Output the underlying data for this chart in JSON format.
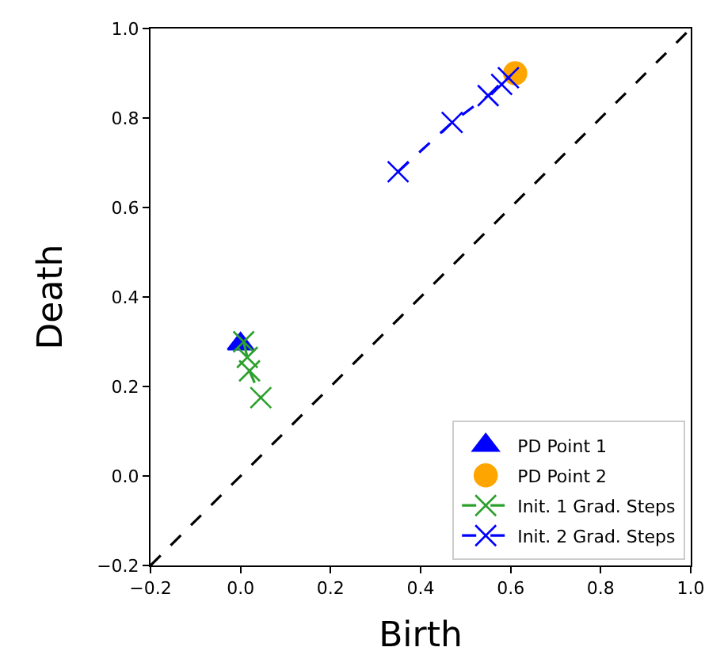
{
  "chart_data": {
    "type": "scatter",
    "xlabel": "Birth",
    "ylabel": "Death",
    "xlim": [
      -0.2,
      1.0
    ],
    "ylim": [
      -0.2,
      1.0
    ],
    "xticks": [
      {
        "value": -0.2,
        "label": "−0.2"
      },
      {
        "value": 0.0,
        "label": "0.0"
      },
      {
        "value": 0.2,
        "label": "0.2"
      },
      {
        "value": 0.4,
        "label": "0.4"
      },
      {
        "value": 0.6,
        "label": "0.6"
      },
      {
        "value": 0.8,
        "label": "0.8"
      },
      {
        "value": 1.0,
        "label": "1.0"
      }
    ],
    "yticks": [
      {
        "value": -0.2,
        "label": "−0.2"
      },
      {
        "value": 0.0,
        "label": "0.0"
      },
      {
        "value": 0.2,
        "label": "0.2"
      },
      {
        "value": 0.4,
        "label": "0.4"
      },
      {
        "value": 0.6,
        "label": "0.6"
      },
      {
        "value": 0.8,
        "label": "0.8"
      },
      {
        "value": 1.0,
        "label": "1.0"
      }
    ],
    "legend": "bottom right",
    "series": [
      {
        "type": "line",
        "color": "#000000",
        "line_style": "dashed",
        "marker": "none",
        "x": [
          -0.2,
          1.0
        ],
        "values": [
          -0.2,
          1.0
        ]
      },
      {
        "name": "PD Point 1",
        "color": "#0000ff",
        "marker": "triangle",
        "x": [
          0.0
        ],
        "values": [
          0.295
        ]
      },
      {
        "name": "PD Point 2",
        "color": "#ffa500",
        "marker": "circle",
        "x": [
          0.61
        ],
        "values": [
          0.9
        ]
      },
      {
        "name": "Init. 1 Grad. Steps",
        "type": "line",
        "color": "#2ca02c",
        "marker": "cross",
        "line_style": "dashed",
        "x": [
          0.007,
          0.015,
          0.02,
          0.045
        ],
        "values": [
          0.3,
          0.265,
          0.235,
          0.175
        ]
      },
      {
        "name": "Init. 2 Grad. Steps",
        "type": "line",
        "color": "#0000ff",
        "marker": "cross",
        "line_style": "dashed",
        "x": [
          0.35,
          0.47,
          0.55,
          0.58,
          0.595
        ],
        "values": [
          0.68,
          0.79,
          0.85,
          0.875,
          0.89
        ]
      }
    ]
  }
}
